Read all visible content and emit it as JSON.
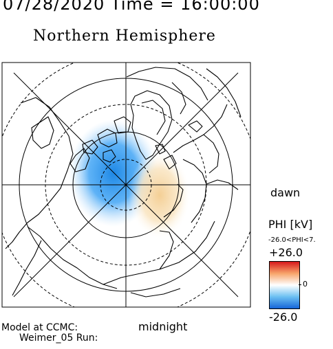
{
  "header": {
    "datetime": "07/28/2020 Time = 16:00:00"
  },
  "title": "Northern Hemisphere",
  "map": {
    "local_time_right": "dawn",
    "local_time_bottom": "midnight"
  },
  "colorbar": {
    "quantity": "PHI [kV]",
    "range_text": "-26.0<PHI<7.",
    "max_label": "+26.0",
    "mid_label": "0",
    "min_label": "-26.0",
    "colors": {
      "max": "#d7191c",
      "mid": "#ffffff",
      "min": "#1565d8"
    }
  },
  "footer": {
    "model_line1": "Model at CCMC:",
    "model_line2": "Weimer_05 Run:"
  },
  "potential_features": [
    {
      "sign": "negative",
      "color": "#2f8fe5"
    },
    {
      "sign": "positive",
      "color": "#f5cf96"
    }
  ]
}
